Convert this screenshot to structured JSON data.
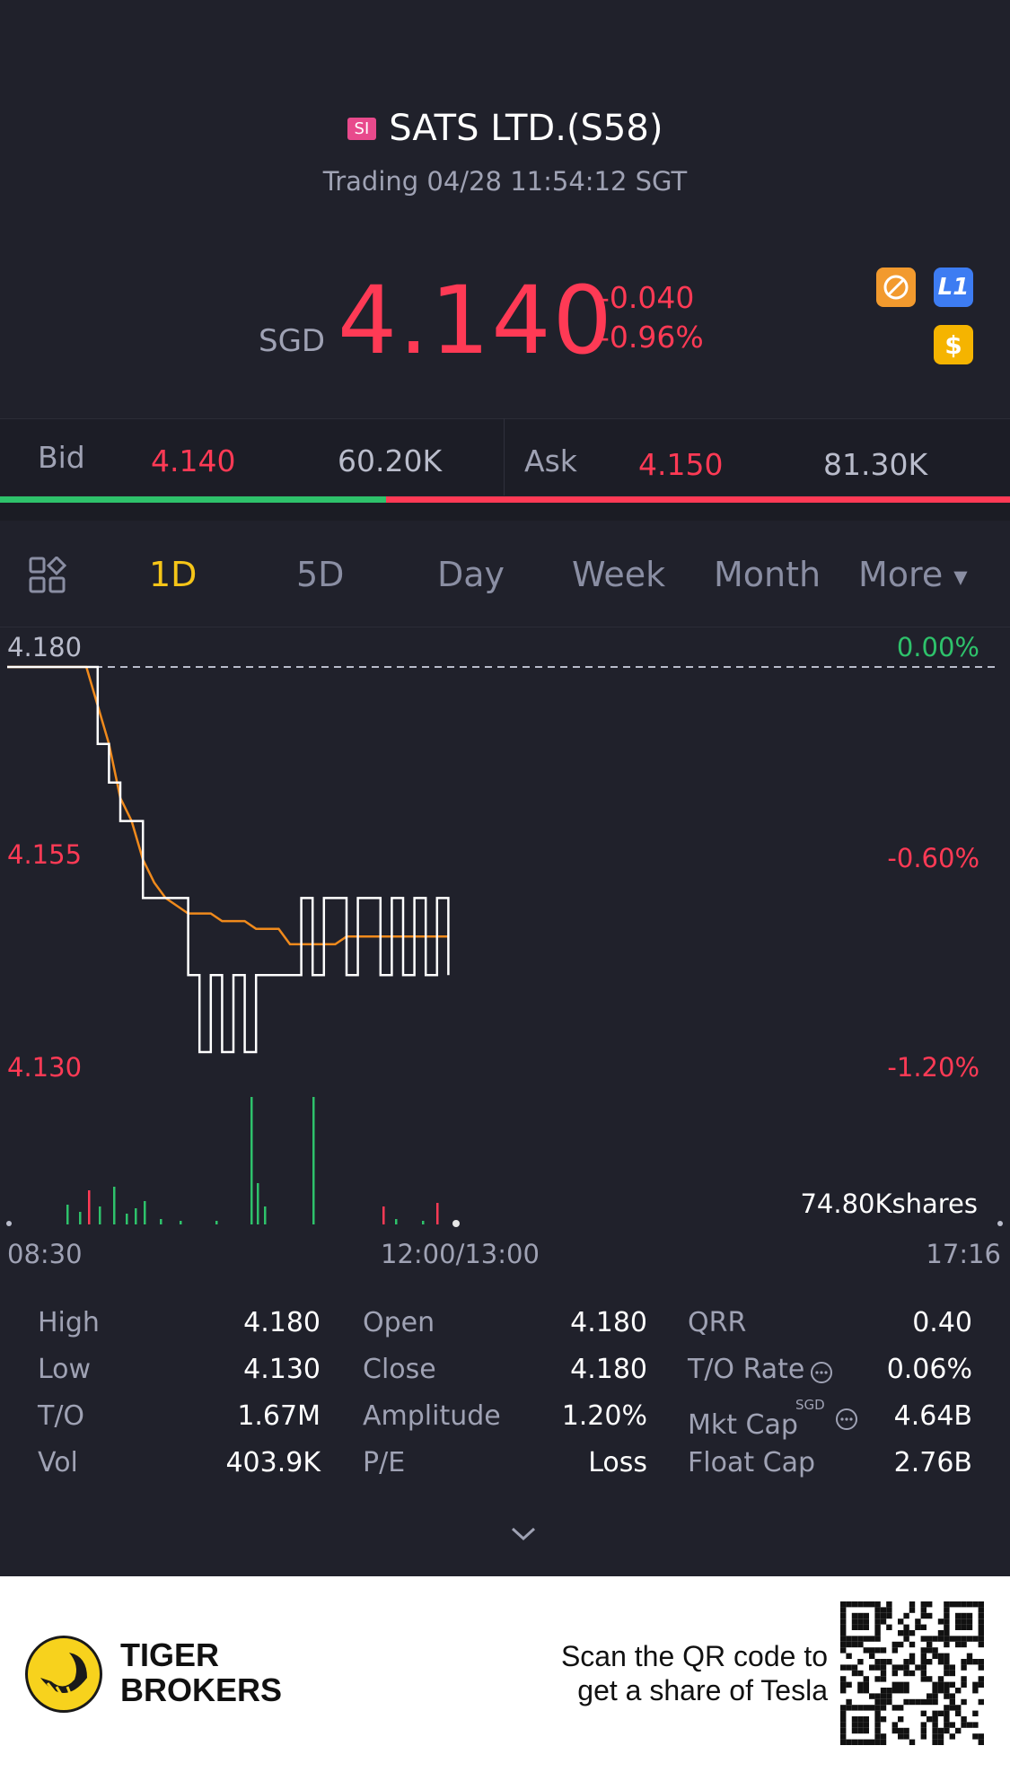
{
  "header": {
    "market_badge": "SI",
    "title": "SATS LTD.(S58)",
    "subtitle": "Trading 04/28 11:54:12 SGT"
  },
  "quote": {
    "currency": "SGD",
    "price": "4.140",
    "change": "-0.040",
    "change_pct": "-0.96%",
    "icons": [
      "no-margin-icon",
      "level1-icon",
      "dollar-icon"
    ],
    "level_badge": "L1",
    "dollar_badge": "$"
  },
  "bid_ask": {
    "bid_label": "Bid",
    "bid_price": "4.140",
    "bid_size": "60.20K",
    "ask_label": "Ask",
    "ask_price": "4.150",
    "ask_size": "81.30K",
    "bid_ratio": 0.425
  },
  "tabs": [
    "1D",
    "5D",
    "Day",
    "Week",
    "Month",
    "More"
  ],
  "active_tab": "1D",
  "chart": {
    "y_top": "4.180",
    "y_mid": "4.155",
    "y_bot": "4.130",
    "pct_top": "0.00%",
    "pct_mid": "-0.60%",
    "pct_bot": "-1.20%",
    "volume_label": "74.80Kshares",
    "x_start": "08:30",
    "x_mid": "12:00/13:00",
    "x_end": "17:16"
  },
  "chart_data": {
    "type": "line",
    "ylim": [
      4.13,
      4.18
    ],
    "series": [
      {
        "values": [
          4.18,
          4.18,
          4.18,
          4.18,
          4.18,
          4.18,
          4.18,
          4.18,
          4.17,
          4.165,
          4.16,
          4.16,
          4.15,
          4.15,
          4.15,
          4.15,
          4.14,
          4.13,
          4.14,
          4.13,
          4.14,
          4.13,
          4.14,
          4.14,
          4.14,
          4.14,
          4.15,
          4.14,
          4.15,
          4.15,
          4.14,
          4.15,
          4.15,
          4.14,
          4.15,
          4.14,
          4.15,
          4.14,
          4.15,
          4.14
        ]
      },
      {
        "values": [
          4.18,
          4.18,
          4.18,
          4.18,
          4.18,
          4.18,
          4.18,
          4.18,
          4.175,
          4.17,
          4.163,
          4.16,
          4.155,
          4.152,
          4.15,
          4.149,
          4.148,
          4.148,
          4.148,
          4.147,
          4.147,
          4.147,
          4.146,
          4.146,
          4.146,
          4.144,
          4.144,
          4.144,
          4.144,
          4.144,
          4.145,
          4.145,
          4.145,
          4.145,
          4.145,
          4.145,
          4.145,
          4.145,
          4.145,
          4.145
        ]
      }
    ]
  },
  "stats": [
    [
      {
        "label": "High",
        "value": "4.180"
      },
      {
        "label": "Open",
        "value": "4.180"
      },
      {
        "label": "QRR",
        "value": "0.40"
      }
    ],
    [
      {
        "label": "Low",
        "value": "4.130"
      },
      {
        "label": "Close",
        "value": "4.180"
      },
      {
        "label": "T/O Rate",
        "value": "0.06%"
      }
    ],
    [
      {
        "label": "T/O",
        "value": "1.67M"
      },
      {
        "label": "Amplitude",
        "value": "1.20%"
      },
      {
        "label": "Mkt Cap",
        "value": "4.64B"
      }
    ],
    [
      {
        "label": "Vol",
        "value": "403.9K"
      },
      {
        "label": "P/E",
        "value": "Loss"
      },
      {
        "label": "Float Cap",
        "value": "2.76B"
      }
    ]
  ],
  "mkt_cap_currency": "SGD",
  "footer": {
    "brand_line1": "TIGER",
    "brand_line2": "BROKERS",
    "scan_line1": "Scan the QR code to",
    "scan_line2": "get a share of Tesla"
  },
  "colors": {
    "up": "#2ec26b",
    "down": "#ff3a55",
    "accent": "#f5c518",
    "avg": "#f08a1c"
  }
}
